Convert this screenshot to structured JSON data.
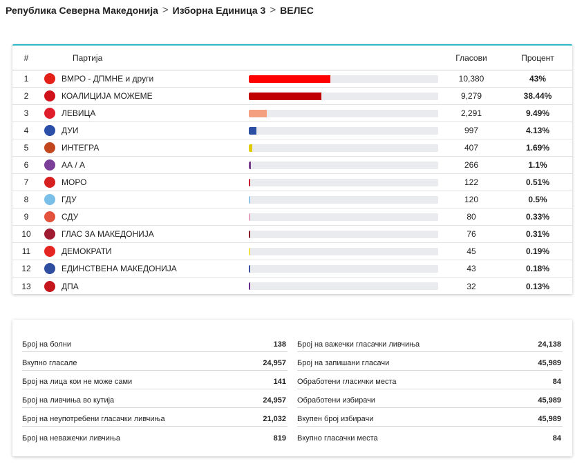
{
  "breadcrumb": {
    "items": [
      "Република Северна Македонија",
      "Изборна Единица 3",
      "ВЕЛЕС"
    ],
    "separator": ">"
  },
  "results": {
    "headers": {
      "num": "#",
      "party": "Партија",
      "votes": "Гласови",
      "percent": "Процент"
    },
    "rows": [
      {
        "num": "1",
        "party": "ВМРО - ДПМНЕ и други",
        "votes": "10,380",
        "percent": "43%",
        "share": 0.43,
        "bar_color": "#ff0000",
        "logo_icon": "vmro-dpmne-logo-icon",
        "logo_color": "#e32119"
      },
      {
        "num": "2",
        "party": "КОАЛИЦИЈА МОЖЕМЕ",
        "votes": "9,279",
        "percent": "38.44%",
        "share": 0.3844,
        "bar_color": "#c00000",
        "logo_icon": "mozeme-logo-icon",
        "logo_color": "#d0121b"
      },
      {
        "num": "3",
        "party": "ЛЕВИЦА",
        "votes": "2,291",
        "percent": "9.49%",
        "share": 0.0949,
        "bar_color": "#f4a080",
        "logo_icon": "levica-logo-icon",
        "logo_color": "#e01e2b"
      },
      {
        "num": "4",
        "party": "ДУИ",
        "votes": "997",
        "percent": "4.13%",
        "share": 0.0413,
        "bar_color": "#2d4fa3",
        "logo_icon": "dui-logo-icon",
        "logo_color": "#2b4fa8"
      },
      {
        "num": "5",
        "party": "ИНТЕГРА",
        "votes": "407",
        "percent": "1.69%",
        "share": 0.0169,
        "bar_color": "#e0cc00",
        "logo_icon": "integra-logo-icon",
        "logo_color": "#c2461e"
      },
      {
        "num": "6",
        "party": "АА / А",
        "votes": "266",
        "percent": "1.1%",
        "share": 0.011,
        "bar_color": "#7a3c8c",
        "logo_icon": "aa-a-logo-icon",
        "logo_color": "#7b3f99"
      },
      {
        "num": "7",
        "party": "МОРО",
        "votes": "122",
        "percent": "0.51%",
        "share": 0.0051,
        "bar_color": "#c8102e",
        "logo_icon": "moro-logo-icon",
        "logo_color": "#d72020"
      },
      {
        "num": "8",
        "party": "ГДУ",
        "votes": "120",
        "percent": "0.5%",
        "share": 0.005,
        "bar_color": "#8fc4ea",
        "logo_icon": "gdu-logo-icon",
        "logo_color": "#79bfe8"
      },
      {
        "num": "9",
        "party": "СДУ",
        "votes": "80",
        "percent": "0.33%",
        "share": 0.0033,
        "bar_color": "#e7a0c0",
        "logo_icon": "sdu-logo-icon",
        "logo_color": "#e2523c"
      },
      {
        "num": "10",
        "party": "ГЛАС ЗА МАКЕДОНИЈА",
        "votes": "76",
        "percent": "0.31%",
        "share": 0.0031,
        "bar_color": "#8b1a2b",
        "logo_icon": "glas-za-makedonija-logo-icon",
        "logo_color": "#9e1b32"
      },
      {
        "num": "11",
        "party": "ДЕМОКРАТИ",
        "votes": "45",
        "percent": "0.19%",
        "share": 0.0019,
        "bar_color": "#f2e040",
        "logo_icon": "demokrati-logo-icon",
        "logo_color": "#e52521"
      },
      {
        "num": "12",
        "party": "ЕДИНСТВЕНА МАКЕДОНИЈА",
        "votes": "43",
        "percent": "0.18%",
        "share": 0.0018,
        "bar_color": "#3a4fa0",
        "logo_icon": "edinstvena-makedonija-logo-icon",
        "logo_color": "#2f4ea0"
      },
      {
        "num": "13",
        "party": "ДПА",
        "votes": "32",
        "percent": "0.13%",
        "share": 0.0013,
        "bar_color": "#6a2b8c",
        "logo_icon": "dpa-logo-icon",
        "logo_color": "#c4161c"
      }
    ]
  },
  "stats": {
    "left": [
      {
        "label": "Број на болни",
        "value": "138"
      },
      {
        "label": "Вкупно гласале",
        "value": "24,957"
      },
      {
        "label": "Број на лица кои не може сами",
        "value": "141"
      },
      {
        "label": "Број на ливчиња во кутија",
        "value": "24,957"
      },
      {
        "label": "Број на неупотребени гласачки ливчиња",
        "value": "21,032"
      },
      {
        "label": "Број на неважечки ливчиња",
        "value": "819"
      }
    ],
    "right": [
      {
        "label": "Број на важечки гласачки ливчиња",
        "value": "24,138"
      },
      {
        "label": "Број на запишани гласачи",
        "value": "45,989"
      },
      {
        "label": "Обработени гласички места",
        "value": "84"
      },
      {
        "label": "Обработени избирачи",
        "value": "45,989"
      },
      {
        "label": "Вкупен број избирачи",
        "value": "45,989"
      },
      {
        "label": "Вкупно гласачки места",
        "value": "84"
      }
    ]
  },
  "colors": {
    "accent": "#2fb8c8",
    "bar_track": "#e9ebef"
  }
}
